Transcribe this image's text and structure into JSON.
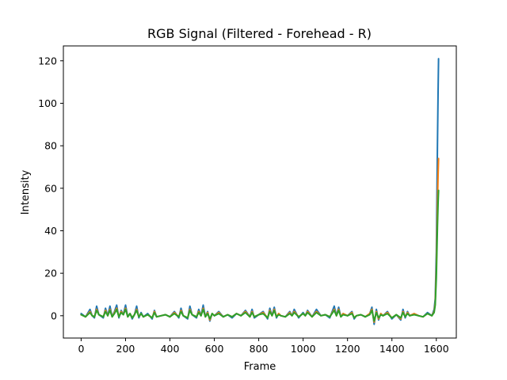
{
  "chart_data": {
    "type": "line",
    "title": "RGB Signal (Filtered - Forehead - R)",
    "xlabel": "Frame",
    "ylabel": "Intensity",
    "xlim": [
      -80,
      1690
    ],
    "ylim": [
      -10.5,
      127
    ],
    "xticks": [
      0,
      200,
      400,
      600,
      800,
      1000,
      1200,
      1400,
      1600
    ],
    "yticks": [
      0,
      20,
      40,
      60,
      80,
      100,
      120
    ],
    "grid": false,
    "legend": "none",
    "series": [
      {
        "color": "#1f77b4",
        "x": [
          0,
          20,
          40,
          50,
          60,
          70,
          80,
          100,
          110,
          120,
          130,
          140,
          150,
          160,
          170,
          180,
          190,
          200,
          210,
          220,
          230,
          240,
          250,
          260,
          270,
          280,
          300,
          320,
          330,
          340,
          360,
          380,
          400,
          420,
          440,
          450,
          460,
          480,
          490,
          500,
          520,
          530,
          540,
          550,
          560,
          570,
          580,
          590,
          600,
          620,
          640,
          660,
          680,
          700,
          720,
          740,
          760,
          770,
          780,
          800,
          820,
          840,
          850,
          860,
          870,
          880,
          890,
          900,
          920,
          940,
          950,
          960,
          980,
          1000,
          1010,
          1020,
          1040,
          1060,
          1080,
          1100,
          1120,
          1140,
          1150,
          1160,
          1170,
          1180,
          1200,
          1220,
          1230,
          1240,
          1260,
          1280,
          1300,
          1310,
          1320,
          1330,
          1340,
          1350,
          1360,
          1380,
          1400,
          1420,
          1440,
          1450,
          1460,
          1470,
          1480,
          1500,
          1520,
          1540,
          1560,
          1580,
          1590,
          1595,
          1600,
          1605,
          1608,
          1610
        ],
        "y": [
          1,
          -0.5,
          3,
          0,
          -1,
          4.5,
          0.5,
          -1,
          3.5,
          0,
          4.5,
          -0.5,
          2,
          5,
          -1,
          2.5,
          0.5,
          5,
          -0.5,
          1,
          -1.5,
          0.5,
          4.5,
          -1,
          1.5,
          -0.5,
          1,
          -1.5,
          2.5,
          -0.5,
          0,
          0.5,
          -0.5,
          2,
          -1,
          3.5,
          0,
          -1.5,
          4.5,
          0.5,
          -1,
          3,
          0,
          5,
          -0.5,
          2,
          -2.5,
          1,
          0,
          2,
          -0.5,
          0.5,
          -1,
          1,
          0,
          2.5,
          -0.5,
          3,
          -1,
          0.5,
          2,
          -1.5,
          3.5,
          0,
          4,
          -1,
          1,
          0,
          -0.5,
          2,
          0,
          3,
          -1,
          1.5,
          0,
          2.5,
          -0.5,
          3,
          0,
          0.5,
          -1,
          4.5,
          0,
          4,
          -0.5,
          1,
          0,
          2,
          -1.5,
          0,
          0.5,
          -0.5,
          1,
          4,
          -4,
          3,
          -2,
          1,
          0,
          2,
          -1.5,
          0.5,
          -2,
          3,
          -1,
          2,
          0,
          1,
          0,
          -0.5,
          1.5,
          0,
          3,
          8,
          30,
          80,
          105,
          121
        ]
      },
      {
        "color": "#ff7f0e",
        "x": [
          0,
          20,
          40,
          50,
          60,
          70,
          80,
          100,
          110,
          120,
          130,
          140,
          150,
          160,
          170,
          180,
          190,
          200,
          210,
          220,
          230,
          240,
          250,
          260,
          270,
          280,
          300,
          320,
          330,
          340,
          360,
          380,
          400,
          420,
          440,
          450,
          460,
          480,
          490,
          500,
          520,
          530,
          540,
          550,
          560,
          570,
          580,
          590,
          600,
          620,
          640,
          660,
          680,
          700,
          720,
          740,
          760,
          770,
          780,
          800,
          820,
          840,
          850,
          860,
          870,
          880,
          890,
          900,
          920,
          940,
          950,
          960,
          980,
          1000,
          1010,
          1020,
          1040,
          1060,
          1080,
          1100,
          1120,
          1140,
          1150,
          1160,
          1170,
          1180,
          1200,
          1220,
          1230,
          1240,
          1260,
          1280,
          1300,
          1310,
          1320,
          1330,
          1340,
          1350,
          1360,
          1380,
          1400,
          1420,
          1440,
          1450,
          1460,
          1470,
          1480,
          1500,
          1520,
          1540,
          1560,
          1580,
          1590,
          1595,
          1600,
          1605,
          1608,
          1610
        ],
        "y": [
          0.5,
          -0.5,
          2,
          0,
          -0.5,
          3,
          0.5,
          -0.5,
          2.5,
          0,
          3,
          -0.5,
          1.5,
          3.5,
          -0.5,
          2,
          0.5,
          3.5,
          -0.5,
          1,
          -1,
          0.5,
          3,
          -0.5,
          1,
          -0.5,
          0.5,
          -1,
          2,
          -0.5,
          0,
          0.5,
          -0.5,
          1.5,
          -0.5,
          2.5,
          0,
          -1,
          3,
          0.5,
          -0.5,
          2,
          0,
          3.5,
          -0.5,
          1.5,
          -2,
          1,
          0,
          1.5,
          -0.5,
          0.5,
          -0.5,
          1,
          0,
          2,
          -0.5,
          2,
          -0.5,
          0.5,
          1.5,
          -1,
          2.5,
          0,
          3,
          -0.5,
          1,
          0,
          -0.5,
          1.5,
          0,
          2,
          -0.5,
          1,
          0,
          2,
          -0.5,
          2,
          0,
          0.5,
          -0.5,
          3,
          0,
          3,
          -0.5,
          1,
          0,
          1.5,
          -1,
          0,
          0.5,
          -0.5,
          1,
          3,
          -3,
          2,
          -1.5,
          1,
          0,
          1.5,
          -1,
          0.5,
          -1.5,
          2,
          -0.5,
          1.5,
          0,
          1,
          0,
          -0.5,
          1,
          0,
          2,
          6,
          22,
          52,
          66,
          74
        ]
      },
      {
        "color": "#2ca02c",
        "x": [
          0,
          20,
          40,
          50,
          60,
          70,
          80,
          100,
          110,
          120,
          130,
          140,
          150,
          160,
          170,
          180,
          190,
          200,
          210,
          220,
          230,
          240,
          250,
          260,
          270,
          280,
          300,
          320,
          330,
          340,
          360,
          380,
          400,
          420,
          440,
          450,
          460,
          480,
          490,
          500,
          520,
          530,
          540,
          550,
          560,
          570,
          580,
          590,
          600,
          620,
          640,
          660,
          680,
          700,
          720,
          740,
          760,
          770,
          780,
          800,
          820,
          840,
          850,
          860,
          870,
          880,
          890,
          900,
          920,
          940,
          950,
          960,
          980,
          1000,
          1010,
          1020,
          1040,
          1060,
          1080,
          1100,
          1120,
          1140,
          1150,
          1160,
          1170,
          1180,
          1200,
          1220,
          1230,
          1240,
          1260,
          1280,
          1300,
          1310,
          1320,
          1330,
          1340,
          1350,
          1360,
          1380,
          1400,
          1420,
          1440,
          1450,
          1460,
          1470,
          1480,
          1500,
          1520,
          1540,
          1560,
          1580,
          1590,
          1595,
          1600,
          1605,
          1608,
          1610
        ],
        "y": [
          0.5,
          -0.5,
          1.5,
          0,
          -0.5,
          2.5,
          0.5,
          -0.5,
          2,
          0,
          2.5,
          -0.5,
          1,
          3,
          -0.5,
          1.5,
          0.5,
          3,
          -0.5,
          1,
          -1,
          0.5,
          2.5,
          -0.5,
          1,
          -0.5,
          0.5,
          -1,
          1.5,
          -0.5,
          0,
          0.5,
          -0.5,
          1,
          -0.5,
          2,
          0,
          -1,
          2.5,
          0.5,
          -0.5,
          1.5,
          0,
          3,
          -0.5,
          1,
          -1.5,
          1,
          0,
          1,
          -0.5,
          0.5,
          -0.5,
          1,
          0,
          1.5,
          -0.5,
          1.5,
          -0.5,
          0.5,
          1,
          -1,
          2,
          0,
          2.5,
          -0.5,
          0.5,
          0,
          -0.5,
          1,
          0,
          1.5,
          -0.5,
          1,
          0,
          1.5,
          -0.5,
          1.5,
          0,
          0.5,
          -0.5,
          2.5,
          0,
          2.5,
          -0.5,
          0.5,
          0,
          1,
          -1,
          0,
          0.5,
          -0.5,
          0.5,
          2.5,
          -2.5,
          1.5,
          -1,
          0.5,
          0,
          1,
          -1,
          0.5,
          -1,
          1.5,
          -0.5,
          1,
          0,
          0.5,
          0,
          -0.5,
          1,
          0,
          1.5,
          5,
          18,
          42,
          53,
          59
        ]
      }
    ]
  }
}
